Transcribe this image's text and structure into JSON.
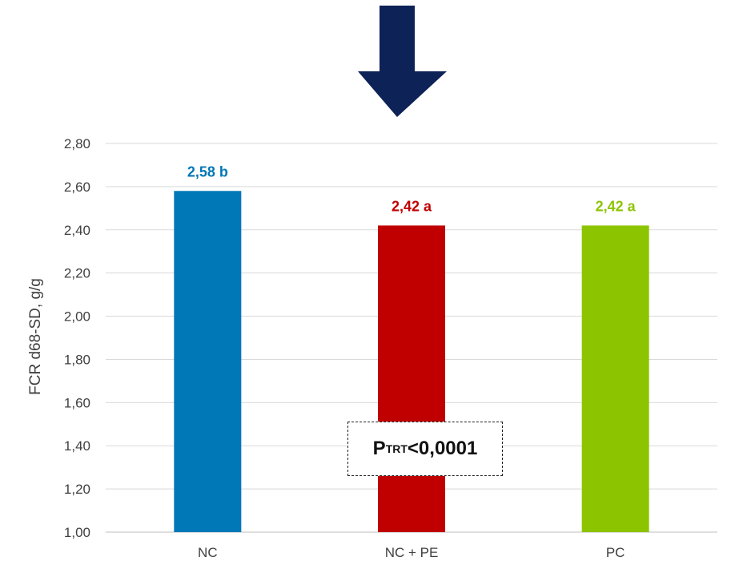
{
  "chart_data": {
    "type": "bar",
    "categories": [
      "NC",
      "NC + PE",
      "PC"
    ],
    "values": [
      2.58,
      2.42,
      2.42
    ],
    "data_labels": [
      "2,58 b",
      "2,42 a",
      "2,42 a"
    ],
    "colors": [
      "#0077b6",
      "#c00000",
      "#8dc400"
    ],
    "ylabel": "FCR d68-SD, g/g",
    "ylim": [
      1.0,
      2.8
    ],
    "yticks": [
      "1,00",
      "1,20",
      "1,40",
      "1,60",
      "1,80",
      "2,00",
      "2,20",
      "2,40",
      "2,60",
      "2,80"
    ],
    "grid": true,
    "annotation": {
      "prefix": "P",
      "subscript": "TRT",
      "suffix": "<0,0001"
    },
    "arrow_color": "#0d2256"
  }
}
